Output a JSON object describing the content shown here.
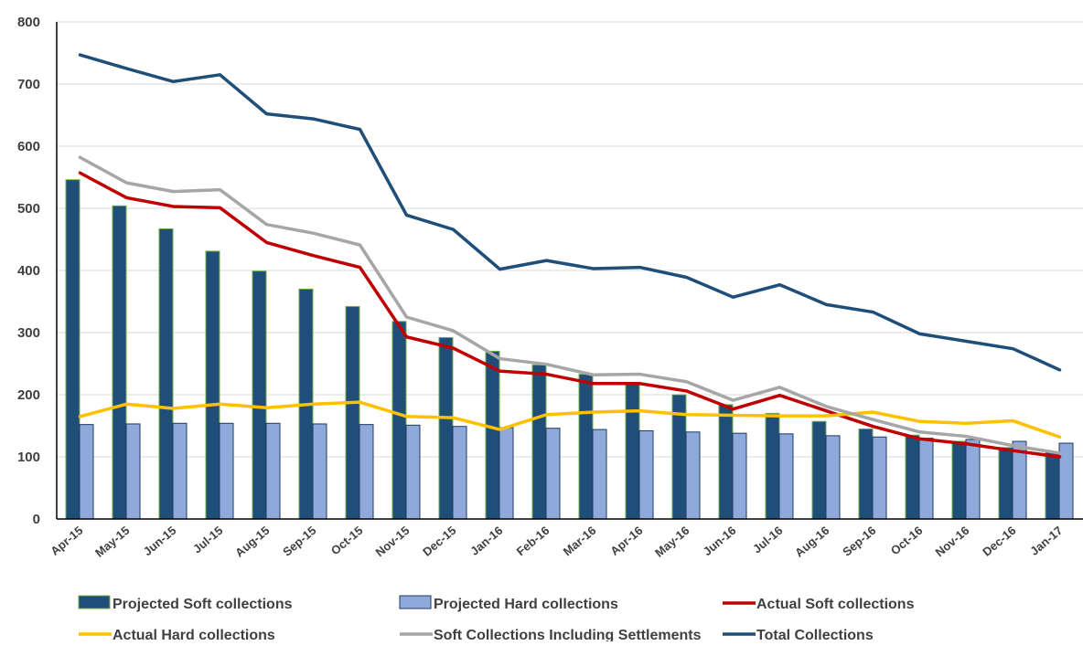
{
  "chart_data": {
    "type": "bar",
    "categories": [
      "Apr-15",
      "May-15",
      "Jun-15",
      "Jul-15",
      "Aug-15",
      "Sep-15",
      "Oct-15",
      "Nov-15",
      "Dec-15",
      "Jan-16",
      "Feb-16",
      "Mar-16",
      "Apr-16",
      "May-16",
      "Jun-16",
      "Jul-16",
      "Aug-16",
      "Sep-16",
      "Oct-16",
      "Nov-16",
      "Dec-16",
      "Jan-17"
    ],
    "ylim": [
      0,
      800
    ],
    "yticks": [
      0,
      100,
      200,
      300,
      400,
      500,
      600,
      700,
      800
    ],
    "grid": true,
    "legend_position": "bottom",
    "series": [
      {
        "name": "Projected Soft collections",
        "kind": "bar",
        "color": "#1f4e79",
        "values": [
          546,
          504,
          467,
          431,
          399,
          370,
          342,
          318,
          292,
          270,
          248,
          233,
          218,
          200,
          184,
          170,
          157,
          145,
          135,
          125,
          115,
          108
        ]
      },
      {
        "name": "Projected Hard collections",
        "kind": "bar",
        "color": "#8eaadb",
        "values": [
          152,
          153,
          154,
          154,
          154,
          153,
          152,
          151,
          149,
          147,
          146,
          144,
          142,
          140,
          138,
          137,
          134,
          132,
          130,
          128,
          125,
          122
        ]
      },
      {
        "name": "Actual Soft collections",
        "kind": "line",
        "color": "#c00000",
        "values": [
          557,
          517,
          503,
          501,
          445,
          424,
          405,
          293,
          275,
          238,
          233,
          218,
          218,
          206,
          177,
          199,
          174,
          149,
          129,
          121,
          110,
          100
        ]
      },
      {
        "name": "Actual Hard collections",
        "kind": "line",
        "color": "#ffc000",
        "values": [
          165,
          185,
          178,
          185,
          179,
          185,
          188,
          165,
          163,
          144,
          168,
          172,
          174,
          168,
          167,
          166,
          166,
          172,
          157,
          154,
          158,
          132
        ]
      },
      {
        "name": "Soft Collections Including Settlements",
        "kind": "line",
        "color": "#a6a6a6",
        "values": [
          582,
          541,
          527,
          530,
          474,
          460,
          441,
          325,
          303,
          258,
          249,
          232,
          233,
          221,
          191,
          212,
          181,
          160,
          140,
          133,
          118,
          106
        ]
      },
      {
        "name": "Total Collections",
        "kind": "line",
        "color": "#1f4e79",
        "values": [
          747,
          725,
          704,
          715,
          652,
          644,
          627,
          489,
          466,
          402,
          416,
          403,
          405,
          389,
          357,
          377,
          345,
          333,
          298,
          286,
          274,
          240
        ]
      }
    ],
    "legend": [
      {
        "label": "Projected Soft collections",
        "marker": "box",
        "color": "#1f4e79"
      },
      {
        "label": "Projected Hard collections",
        "marker": "box",
        "color": "#8eaadb"
      },
      {
        "label": "Actual Soft collections",
        "marker": "line",
        "color": "#c00000"
      },
      {
        "label": "Actual Hard collections",
        "marker": "line",
        "color": "#ffc000"
      },
      {
        "label": "Soft Collections Including Settlements",
        "marker": "line",
        "color": "#a6a6a6"
      },
      {
        "label": "Total Collections",
        "marker": "line",
        "color": "#1f4e79"
      }
    ]
  }
}
